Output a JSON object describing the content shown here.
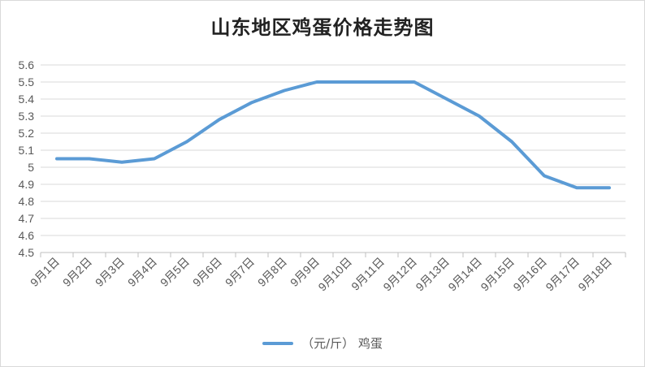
{
  "chart_data": {
    "type": "line",
    "title": "山东地区鸡蛋价格走势图",
    "categories": [
      "9月1日",
      "9月2日",
      "9月3日",
      "9月4日",
      "9月5日",
      "9月6日",
      "9月7日",
      "9月8日",
      "9月9日",
      "9月10日",
      "9月11日",
      "9月12日",
      "9月13日",
      "9月14日",
      "9月15日",
      "9月16日",
      "9月17日",
      "9月18日"
    ],
    "series": [
      {
        "name": "（元/斤） 鸡蛋",
        "color": "#5b9bd5",
        "values": [
          5.05,
          5.05,
          5.03,
          5.05,
          5.15,
          5.28,
          5.38,
          5.45,
          5.5,
          5.5,
          5.5,
          5.5,
          5.4,
          5.3,
          5.15,
          4.95,
          4.88,
          4.88
        ]
      }
    ],
    "ylim": [
      4.5,
      5.6
    ],
    "yticks": [
      "4.5",
      "4.6",
      "4.7",
      "4.8",
      "4.9",
      "5",
      "5.1",
      "5.2",
      "5.3",
      "5.4",
      "5.5",
      "5.6"
    ],
    "grid": true,
    "legend_position": "bottom"
  }
}
